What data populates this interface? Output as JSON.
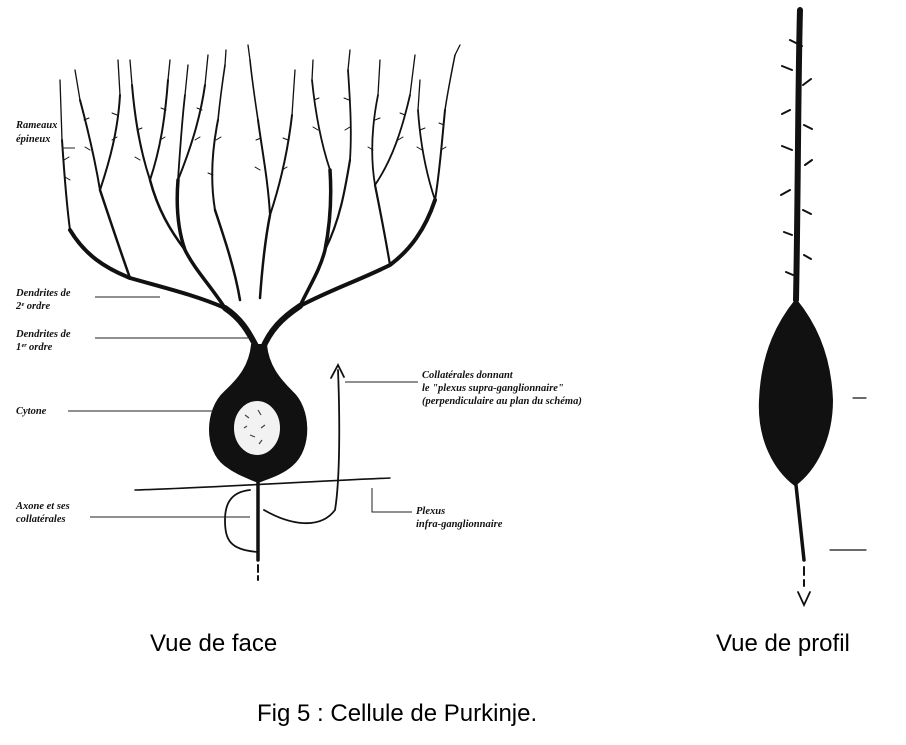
{
  "caption": "Fig 5 : Cellule de Purkinje.",
  "views": {
    "front": "Vue de face",
    "profile": "Vue de profil"
  },
  "labels": {
    "rameaux_line1": "Rameaux",
    "rameaux_line2": "épineux",
    "dendrites2_line1": "Dendrites de",
    "dendrites2_line2": "2ᵉ ordre",
    "dendrites1_line1": "Dendrites de",
    "dendrites1_line2": "1ᵉʳ ordre",
    "cytone": "Cytone",
    "axone_line1": "Axone et ses",
    "axone_line2": "collatérales",
    "collat_line1": "Collatérales donnant",
    "collat_line2": "le \"plexus supra-ganglionnaire\"",
    "collat_line3": "(perpendiculaire au plan du schéma)",
    "plexus_line1": "Plexus",
    "plexus_line2": "infra-ganglionnaire"
  },
  "colors": {
    "ink": "#111111",
    "background": "#ffffff"
  }
}
